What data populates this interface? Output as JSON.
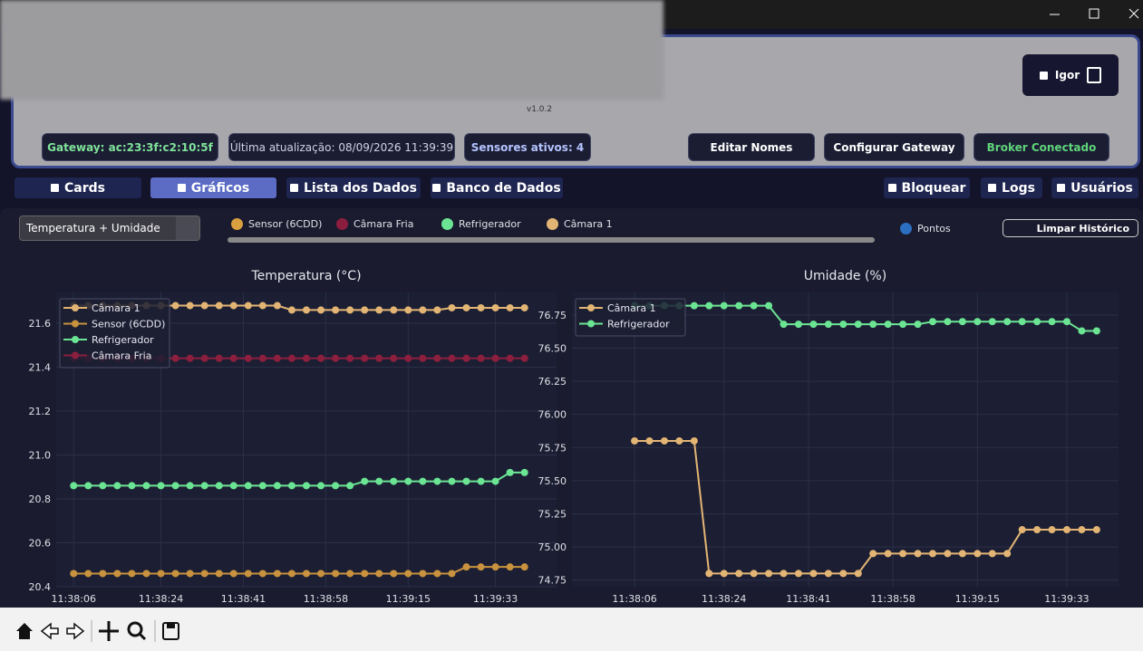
{
  "header": {
    "version": "v1.0.2",
    "user": "Igor",
    "gateway": "Gateway: ac:23:3f:c2:10:5f",
    "last_update": "Última atualização: 08/09/2026 11:39:39",
    "sensors_active": "Sensores ativos: 4",
    "buttons": [
      "Editar Nomes",
      "Configurar Gateway",
      "Broker Conectado"
    ]
  },
  "tabs": [
    "Cards",
    "Gráficos",
    "Lista dos Dados",
    "Banco de Dados"
  ],
  "right_tabs": [
    "Bloquear",
    "Logs",
    "Usuários"
  ],
  "controls": {
    "view_select": "Temperatura + Umidade",
    "sensor_filters": [
      "Sensor (6CDD)",
      "Câmara Fria",
      "Refrigerador",
      "Câmara 1"
    ],
    "points_toggle": "Pontos",
    "clear_button": "Limpar Histórico"
  },
  "chart_data": [
    {
      "type": "line",
      "title": "Temperatura (°C)",
      "grid": true,
      "legend": "upper left",
      "x": [
        41886,
        41889,
        41892,
        41895,
        41898,
        41901,
        41904,
        41907,
        41910,
        41913,
        41916,
        41919,
        41922,
        41925,
        41928,
        41931,
        41934,
        41937,
        41940,
        41943,
        41946,
        41949,
        41952,
        41955,
        41958,
        41961,
        41964,
        41967,
        41970,
        41973,
        41976,
        41979
      ],
      "xlim": [
        41882.4,
        41985.6
      ],
      "xticks": [
        {
          "value": 41886,
          "label": "11:38:06"
        },
        {
          "value": 41904,
          "label": "11:38:24"
        },
        {
          "value": 41921,
          "label": "11:38:41"
        },
        {
          "value": 41938,
          "label": "11:38:58"
        },
        {
          "value": 41955,
          "label": "11:39:15"
        },
        {
          "value": 41973,
          "label": "11:39:33"
        }
      ],
      "ylim": [
        20.4,
        21.74
      ],
      "yticks": [
        20.4,
        20.6,
        20.8,
        {
          "value": 21,
          "label": "21.0"
        },
        21.2,
        21.4,
        21.6
      ],
      "series": [
        {
          "name": "Câmara 1",
          "color": "#e3b574",
          "values": [
            21.68,
            21.68,
            21.68,
            21.68,
            21.68,
            21.68,
            21.68,
            21.68,
            21.68,
            21.68,
            21.68,
            21.68,
            21.68,
            21.68,
            21.68,
            21.66,
            21.66,
            21.66,
            21.66,
            21.66,
            21.66,
            21.66,
            21.66,
            21.66,
            21.66,
            21.66,
            21.67,
            21.67,
            21.67,
            21.67,
            21.67,
            21.67
          ]
        },
        {
          "name": "Sensor (6CDD)",
          "color": "#c9923e",
          "values": [
            20.46,
            20.46,
            20.46,
            20.46,
            20.46,
            20.46,
            20.46,
            20.46,
            20.46,
            20.46,
            20.46,
            20.46,
            20.46,
            20.46,
            20.46,
            20.46,
            20.46,
            20.46,
            20.46,
            20.46,
            20.46,
            20.46,
            20.46,
            20.46,
            20.46,
            20.46,
            20.46,
            20.49,
            20.49,
            20.49,
            20.49,
            20.49
          ]
        },
        {
          "name": "Refrigerador",
          "color": "#6be594",
          "values": [
            20.86,
            20.86,
            20.86,
            20.86,
            20.86,
            20.86,
            20.86,
            20.86,
            20.86,
            20.86,
            20.86,
            20.86,
            20.86,
            20.86,
            20.86,
            20.86,
            20.86,
            20.86,
            20.86,
            20.86,
            20.88,
            20.88,
            20.88,
            20.88,
            20.88,
            20.88,
            20.88,
            20.88,
            20.88,
            20.88,
            20.92,
            20.92
          ]
        },
        {
          "name": "Câmara Fria",
          "color": "#8c1f3e",
          "values": [
            21.44,
            21.44,
            21.44,
            21.44,
            21.44,
            21.44,
            21.44,
            21.44,
            21.44,
            21.44,
            21.44,
            21.44,
            21.44,
            21.44,
            21.44,
            21.44,
            21.44,
            21.44,
            21.44,
            21.44,
            21.44,
            21.44,
            21.44,
            21.44,
            21.44,
            21.44,
            21.44,
            21.44,
            21.44,
            21.44,
            21.44,
            21.44
          ]
        }
      ]
    },
    {
      "type": "line",
      "title": "Umidade (%)",
      "grid": true,
      "legend": "upper left",
      "x": [
        41886,
        41889,
        41892,
        41895,
        41898,
        41901,
        41904,
        41907,
        41910,
        41913,
        41916,
        41919,
        41922,
        41925,
        41928,
        41931,
        41934,
        41937,
        41940,
        41943,
        41946,
        41949,
        41952,
        41955,
        41958,
        41961,
        41964,
        41967,
        41970,
        41973,
        41976,
        41979
      ],
      "xlim": [
        41873.4,
        41983.4
      ],
      "xticks": [
        {
          "value": 41886,
          "label": "11:38:06"
        },
        {
          "value": 41904,
          "label": "11:38:24"
        },
        {
          "value": 41921,
          "label": "11:38:41"
        },
        {
          "value": 41938,
          "label": "11:38:58"
        },
        {
          "value": 41955,
          "label": "11:39:15"
        },
        {
          "value": 41973,
          "label": "11:39:33"
        }
      ],
      "ylim": [
        74.7,
        76.92
      ],
      "yticks": [
        74.75,
        {
          "value": 75,
          "label": "75.00"
        },
        75.25,
        {
          "value": 75.5,
          "label": "75.50"
        },
        75.75,
        {
          "value": 76,
          "label": "76.00"
        },
        76.25,
        {
          "value": 76.5,
          "label": "76.50"
        },
        76.75
      ],
      "series": [
        {
          "name": "Câmara 1",
          "color": "#e3b574",
          "values": [
            75.8,
            75.8,
            75.8,
            75.8,
            75.8,
            74.8,
            74.8,
            74.8,
            74.8,
            74.8,
            74.8,
            74.8,
            74.8,
            74.8,
            74.8,
            74.8,
            74.95,
            74.95,
            74.95,
            74.95,
            74.95,
            74.95,
            74.95,
            74.95,
            74.95,
            74.95,
            75.13,
            75.13,
            75.13,
            75.13,
            75.13,
            75.13
          ]
        },
        {
          "name": "Refrigerador",
          "color": "#6be594",
          "values": [
            76.82,
            76.82,
            76.82,
            76.82,
            76.82,
            76.82,
            76.82,
            76.82,
            76.82,
            76.82,
            76.68,
            76.68,
            76.68,
            76.68,
            76.68,
            76.68,
            76.68,
            76.68,
            76.68,
            76.68,
            76.7,
            76.7,
            76.7,
            76.7,
            76.7,
            76.7,
            76.7,
            76.7,
            76.7,
            76.7,
            76.63,
            76.63
          ]
        }
      ]
    }
  ]
}
